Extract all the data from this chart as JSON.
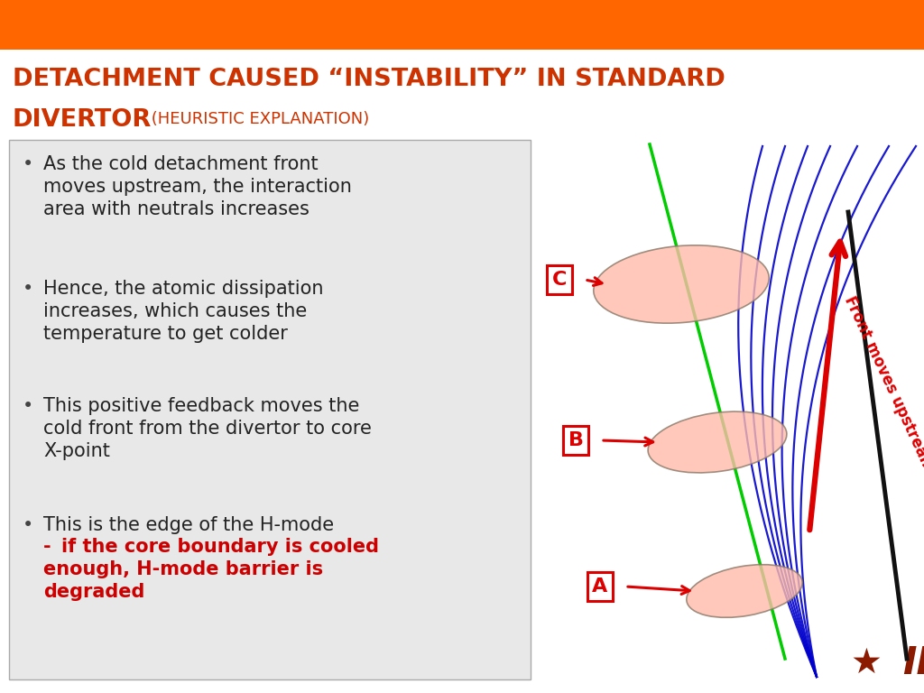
{
  "title_line1": "DETACHMENT CAUSED “INSTABILITY” IN STANDARD",
  "title_line2": "DIVERTOR",
  "title_sub": " (HEURISTIC EXPLANATION)",
  "title_color": "#CC3300",
  "header_color": "#FF6600",
  "bg_color": "#FFFFFF",
  "text_box_bg": "#E8E8E8",
  "text_box_edge": "#AAAAAA",
  "bullet_color": "#222222",
  "bold_red_color": "#CC0000",
  "ifs_color": "#8B1A00",
  "lime_color": "#00CC00",
  "blue_line_color": "#0000CC",
  "black_line_color": "#111111",
  "ellipse_face": "#FFBBAA",
  "ellipse_edge": "#887766",
  "red_color": "#DD0000"
}
